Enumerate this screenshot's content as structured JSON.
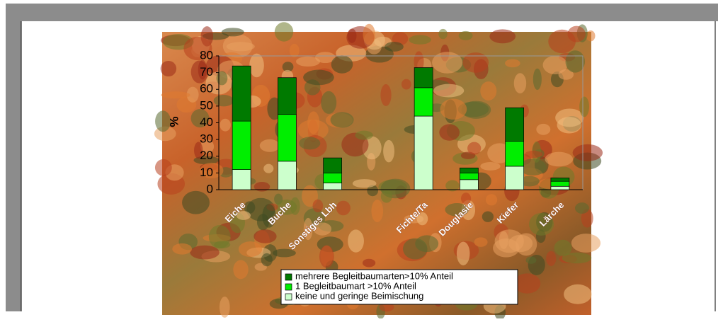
{
  "chart_data": {
    "type": "stacked-bar",
    "ylabel": "%",
    "categories": [
      "Eiche",
      "Buche",
      "Sonstiges Lbh",
      null,
      "Fichte/Ta",
      "Douglasie",
      "Kiefer",
      "Lärche"
    ],
    "series": [
      {
        "name": "keine und geringe Beimischung",
        "color": "#ccffcc",
        "values": [
          12,
          17,
          4,
          null,
          44,
          6,
          14,
          2
        ]
      },
      {
        "name": "1 Begleitbaumart >10% Anteil",
        "color": "#00ee00",
        "values": [
          29,
          28,
          6,
          null,
          17,
          4,
          15,
          3
        ]
      },
      {
        "name": "mehrere Begleitbaumarten>10% Anteil",
        "color": "#007a00",
        "values": [
          33,
          22,
          9,
          null,
          12,
          3,
          20,
          2
        ]
      }
    ],
    "ylim": [
      0,
      80
    ],
    "yticks": [
      0,
      10,
      20,
      30,
      40,
      50,
      60,
      70,
      80
    ]
  }
}
